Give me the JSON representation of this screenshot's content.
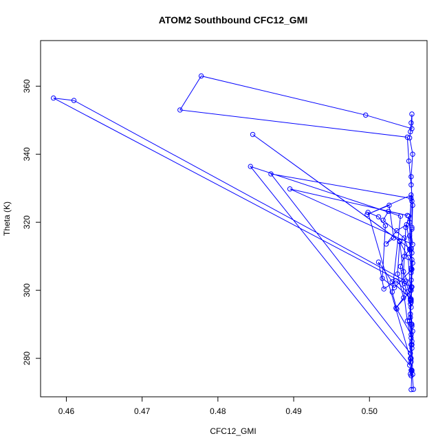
{
  "chart_data": {
    "type": "line",
    "title": "ATOM2 Southbound CFC12_GMI",
    "xlabel": "CFC12_GMI",
    "ylabel": "Theta (K)",
    "xlim": [
      0.4566,
      0.5076
    ],
    "ylim": [
      268.7,
      373.4
    ],
    "xticks": [
      0.46,
      0.47,
      0.48,
      0.49,
      0.5
    ],
    "xtick_labels": [
      "0.46",
      "0.47",
      "0.48",
      "0.49",
      "0.50"
    ],
    "yticks": [
      280,
      300,
      320,
      340,
      360
    ],
    "ytick_labels": [
      "280",
      "300",
      "320",
      "340",
      "360"
    ],
    "grid": false,
    "legend": "none",
    "series": [
      {
        "color": "#0000ff",
        "marker": "open-circle",
        "x": [
          0.5055,
          0.5056,
          0.5057,
          0.5056,
          0.5055,
          0.5054,
          0.5055,
          0.5053,
          0.5056,
          0.5056,
          0.5055,
          0.5057,
          0.5053,
          0.5054,
          0.5055,
          0.5056,
          0.5056,
          0.4995,
          0.4778,
          0.475,
          0.505,
          0.5052,
          0.5055,
          0.5057,
          0.5056,
          0.5055,
          0.4846,
          0.504,
          0.5046,
          0.5054,
          0.5056,
          0.5055,
          0.5053,
          0.4843,
          0.5041,
          0.503,
          0.5036,
          0.5055,
          0.5054,
          0.487,
          0.5055,
          0.5053,
          0.5057,
          0.4895,
          0.505,
          0.5025,
          0.5018,
          0.5046,
          0.5056,
          0.5055,
          0.5054,
          0.5053,
          0.5056,
          0.5055,
          0.4998,
          0.5012,
          0.5021,
          0.5017,
          0.5033,
          0.5055,
          0.5056,
          0.5053,
          0.5055,
          0.4997,
          0.5026,
          0.5032,
          0.5022,
          0.5036,
          0.5049,
          0.5057,
          0.5055,
          0.4583,
          0.461,
          0.5048,
          0.5055,
          0.5054,
          0.5056,
          0.5055,
          0.505,
          0.5041,
          0.5046,
          0.5053,
          0.5055,
          0.5056,
          0.5055,
          0.5051,
          0.504,
          0.5037,
          0.5045,
          0.5035,
          0.5055,
          0.5056,
          0.5055,
          0.5052,
          0.5048,
          0.5045,
          0.5054,
          0.5055,
          0.505,
          0.5035,
          0.5019,
          0.5012,
          0.503,
          0.5055,
          0.5054,
          0.5057,
          0.5056,
          0.5055,
          0.5054,
          0.5055,
          0.5055,
          0.5054,
          0.5056,
          0.5058
        ],
        "y": [
          270.8,
          276.5,
          275.3,
          283.0,
          290.1,
          297.6,
          305.2,
          312.0,
          318.5,
          326.2,
          333.4,
          340.0,
          344.8,
          346.6,
          349.2,
          351.8,
          347.5,
          351.5,
          363.0,
          353.0,
          345.0,
          338.0,
          331.0,
          325.0,
          318.0,
          312.0,
          345.8,
          314.5,
          302.0,
          296.0,
          290.0,
          284.0,
          278.0,
          336.4,
          321.8,
          299.5,
          294.5,
          287.0,
          281.5,
          334.2,
          327.0,
          320.0,
          313.5,
          329.8,
          322.0,
          323.2,
          320.6,
          315.4,
          309.0,
          303.0,
          297.0,
          291.0,
          285.0,
          279.0,
          322.9,
          321.6,
          319.0,
          303.5,
          300.8,
          306.0,
          311.0,
          316.0,
          328.0,
          322.3,
          325.0,
          315.4,
          313.6,
          317.5,
          319.3,
          308.0,
          301.0,
          356.5,
          355.8,
          302.7,
          297.0,
          293.0,
          289.5,
          286.0,
          291.0,
          307.0,
          310.0,
          312.0,
          306.5,
          301.0,
          296.5,
          309.7,
          314.3,
          304.8,
          297.8,
          294.8,
          300.0,
          306.2,
          312.4,
          321.8,
          318.5,
          305.5,
          300.2,
          295.0,
          299.5,
          302.8,
          300.4,
          308.3,
          302.5,
          297.4,
          292.0,
          288.0,
          284.0,
          280.0,
          275.4,
          274.9,
          276.5,
          280.0,
          276.3,
          270.9
        ]
      }
    ]
  }
}
